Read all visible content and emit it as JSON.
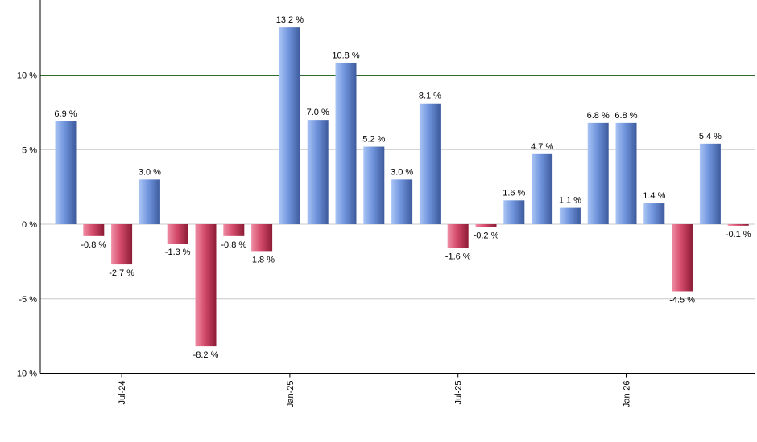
{
  "chart_data": {
    "type": "bar",
    "title": "",
    "xlabel": "",
    "ylabel": "",
    "ylim": [
      -10,
      15
    ],
    "y_ticks": [
      {
        "value": -10,
        "label": "-10 %"
      },
      {
        "value": -5,
        "label": "-5 %"
      },
      {
        "value": 0,
        "label": "0 %"
      },
      {
        "value": 5,
        "label": "5 %"
      },
      {
        "value": 10,
        "label": "10 %"
      }
    ],
    "reference_line": 10,
    "grid": true,
    "legend": "none",
    "x_ticks": [
      {
        "index": 2,
        "label": "Jul-24"
      },
      {
        "index": 8,
        "label": "Jan-25"
      },
      {
        "index": 14,
        "label": "Jul-25"
      },
      {
        "index": 20,
        "label": "Jan-26"
      }
    ],
    "categories": [
      "2024-05",
      "2024-06",
      "2024-07",
      "2024-08",
      "2024-09",
      "2024-10",
      "2024-11",
      "2024-12",
      "2025-01",
      "2025-02",
      "2025-03",
      "2025-04",
      "2025-05",
      "2025-06",
      "2025-07",
      "2025-08",
      "2025-09",
      "2025-10",
      "2025-11",
      "2025-12",
      "2026-01",
      "2026-02",
      "2026-03",
      "2026-04",
      "2026-05"
    ],
    "values": [
      6.9,
      -0.8,
      -2.7,
      3.0,
      -1.3,
      -8.2,
      -0.8,
      -1.8,
      13.2,
      7.0,
      10.8,
      5.2,
      3.0,
      8.1,
      -1.6,
      -0.2,
      1.6,
      4.7,
      1.1,
      6.8,
      6.8,
      1.4,
      -4.5,
      5.4,
      -0.1
    ],
    "labels": [
      "6.9 %",
      "-0.8 %",
      "-2.7 %",
      "3.0 %",
      "-1.3 %",
      "-8.2 %",
      "-0.8 %",
      "-1.8 %",
      "13.2 %",
      "7.0 %",
      "10.8 %",
      "5.2 %",
      "3.0 %",
      "8.1 %",
      "-1.6 %",
      "-0.2 %",
      "1.6 %",
      "4.7 %",
      "1.1 %",
      "6.8 %",
      "6.8 %",
      "1.4 %",
      "-4.5 %",
      "5.4 %",
      "-0.1 %"
    ],
    "colors": {
      "positive_light": "#a9c4f5",
      "positive_mid": "#6f93dc",
      "positive_dark": "#3d5a9c",
      "negative_light": "#f08fa6",
      "negative_mid": "#d44a6a",
      "negative_dark": "#8c1c36",
      "reference_line": "#2f6b2f",
      "grid": "#c8c8c8",
      "axis": "#000000"
    }
  }
}
